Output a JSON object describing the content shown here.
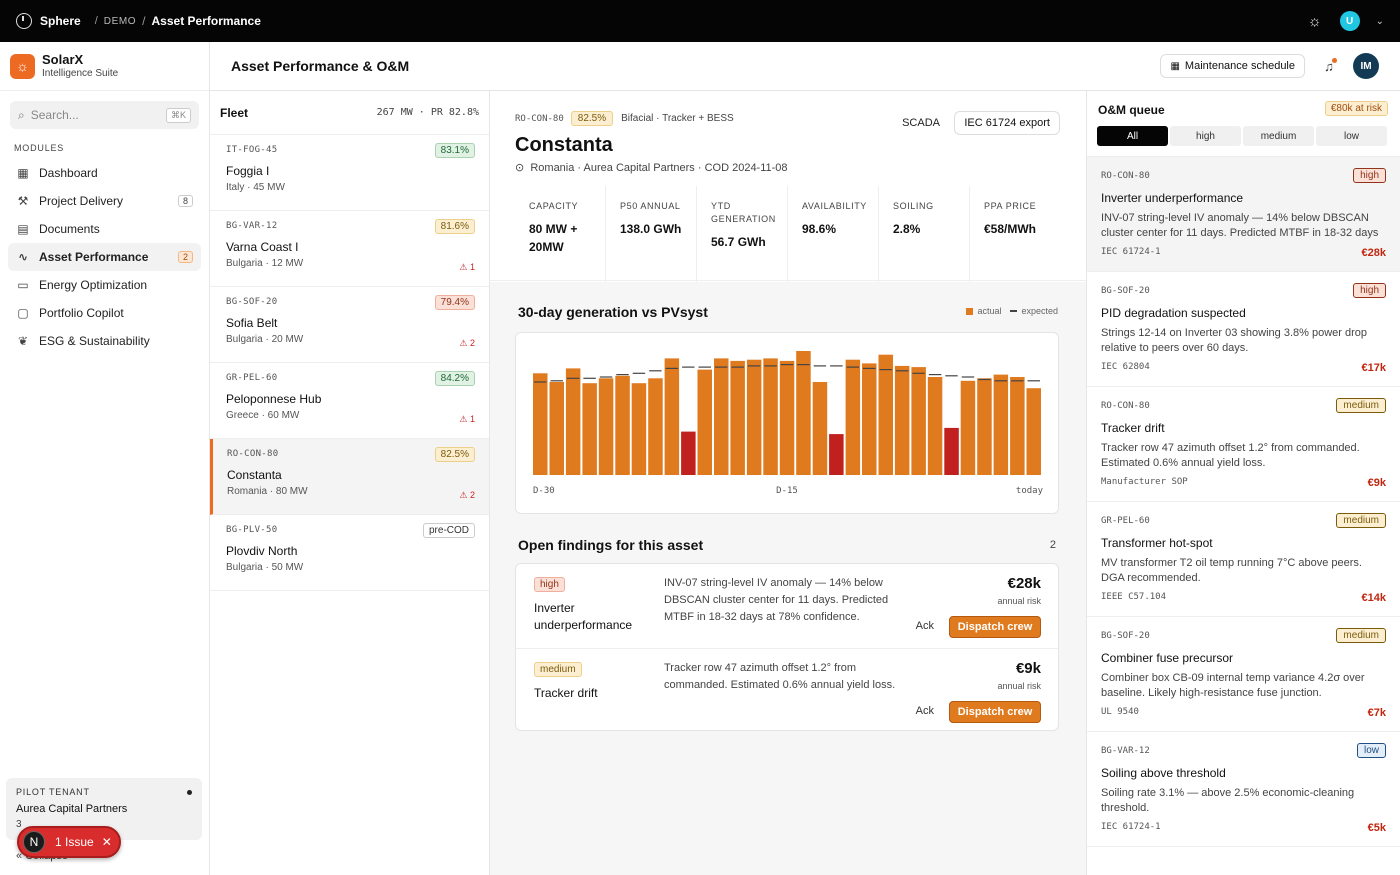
{
  "topbar": {
    "brand": "Sphere",
    "crumb_demo": "DEMO",
    "crumb_current": "Asset Performance",
    "avatar_initial": "U"
  },
  "sidebar": {
    "app_name": "SolarX",
    "app_sub": "Intelligence Suite",
    "search_placeholder": "Search...",
    "search_shortcut": "⌘K",
    "section_label": "MODULES",
    "items": [
      {
        "label": "Dashboard",
        "icon": "grid-icon",
        "badge": ""
      },
      {
        "label": "Project Delivery",
        "icon": "hammer-icon",
        "badge": "8"
      },
      {
        "label": "Documents",
        "icon": "document-icon",
        "badge": ""
      },
      {
        "label": "Asset Performance",
        "icon": "pulse-icon",
        "badge": "2"
      },
      {
        "label": "Energy Optimization",
        "icon": "battery-icon",
        "badge": ""
      },
      {
        "label": "Portfolio Copilot",
        "icon": "chat-icon",
        "badge": ""
      },
      {
        "label": "ESG & Sustainability",
        "icon": "leaf-icon",
        "badge": ""
      }
    ],
    "tenant_label": "PILOT TENANT",
    "tenant_name": "Aurea Capital Partners",
    "tenant_meta": "3",
    "collapse_label": "Collapse",
    "issue_label": "1 Issue",
    "issue_initial": "N"
  },
  "page": {
    "title": "Asset Performance & O&M",
    "maintenance_label": "Maintenance schedule",
    "user_initials": "IM"
  },
  "fleet": {
    "title": "Fleet",
    "summary": "267 MW · PR 82.8%",
    "items": [
      {
        "code": "IT-FOG-45",
        "name": "Foggia I",
        "location": "Italy · 45 MW",
        "pr": "83.1%",
        "tone": "green",
        "alerts": ""
      },
      {
        "code": "BG-VAR-12",
        "name": "Varna Coast I",
        "location": "Bulgaria · 12 MW",
        "pr": "81.6%",
        "tone": "yellow",
        "alerts": "1"
      },
      {
        "code": "BG-SOF-20",
        "name": "Sofia Belt",
        "location": "Bulgaria · 20 MW",
        "pr": "79.4%",
        "tone": "red",
        "alerts": "2"
      },
      {
        "code": "GR-PEL-60",
        "name": "Peloponnese Hub",
        "location": "Greece · 60 MW",
        "pr": "84.2%",
        "tone": "green",
        "alerts": "1"
      },
      {
        "code": "RO-CON-80",
        "name": "Constanta",
        "location": "Romania · 80 MW",
        "pr": "82.5%",
        "tone": "yellow",
        "alerts": "2"
      },
      {
        "code": "BG-PLV-50",
        "name": "Plovdiv North",
        "location": "Bulgaria · 50 MW",
        "pr": "pre-COD",
        "tone": "grey",
        "alerts": ""
      }
    ]
  },
  "asset": {
    "code": "RO-CON-80",
    "pr": "82.5%",
    "tags": "Bifacial · Tracker + BESS",
    "scada": "SCADA",
    "export_label": "IEC 61724 export",
    "name": "Constanta",
    "meta": "Romania · Aurea Capital Partners · COD 2024-11-08",
    "kpis": [
      {
        "label": "CAPACITY",
        "value": "80 MW + 20MW"
      },
      {
        "label": "P50 ANNUAL",
        "value": "138.0 GWh"
      },
      {
        "label": "YTD GENERATION",
        "value": "56.7 GWh"
      },
      {
        "label": "AVAILABILITY",
        "value": "98.6%"
      },
      {
        "label": "SOILING",
        "value": "2.8%"
      },
      {
        "label": "PPA PRICE",
        "value": "€58/MWh"
      }
    ]
  },
  "chart": {
    "title": "30-day generation vs PVsyst",
    "legend_actual": "actual",
    "legend_expected": "expected"
  },
  "chart_data": {
    "type": "bar",
    "title": "30-day generation vs PVsyst",
    "x_tick_labels": [
      "D-30",
      "D-15",
      "today"
    ],
    "ylim": [
      0,
      100
    ],
    "grid": false,
    "legend": "top-right",
    "series": [
      {
        "name": "actual",
        "values": [
          82,
          75,
          86,
          74,
          78,
          80,
          74,
          78,
          94,
          35,
          85,
          94,
          92,
          93,
          94,
          92,
          100,
          75,
          33,
          93,
          90,
          97,
          88,
          87,
          79,
          38,
          76,
          78,
          81,
          79,
          70
        ],
        "below_expected_days": [
          9,
          18,
          25
        ]
      },
      {
        "name": "expected",
        "values": [
          75,
          76,
          78,
          78,
          79,
          81,
          82,
          84,
          86,
          87,
          87,
          87,
          87,
          88,
          88,
          89,
          89,
          88,
          88,
          87,
          86,
          85,
          84,
          82,
          81,
          80,
          79,
          77,
          76,
          76,
          76
        ]
      }
    ],
    "colors": {
      "actual": "#e07a1f",
      "underperform": "#c0201e",
      "expected": "#444444"
    }
  },
  "findings": {
    "title": "Open findings for this asset",
    "count": "2",
    "items": [
      {
        "severity": "high",
        "title": "Inverter underperformance",
        "desc": "INV-07 string-level IV anomaly — 14% below DBSCAN cluster center for 11 days. Predicted MTBF in 18-32 days at 78% confidence.",
        "amount": "€28k",
        "amount_sub": "annual risk",
        "ack": "Ack",
        "dispatch": "Dispatch crew"
      },
      {
        "severity": "medium",
        "title": "Tracker drift",
        "desc": "Tracker row 47 azimuth offset 1.2° from commanded. Estimated 0.6% annual yield loss.",
        "amount": "€9k",
        "amount_sub": "annual risk",
        "ack": "Ack",
        "dispatch": "Dispatch crew"
      }
    ]
  },
  "queue": {
    "title": "O&M queue",
    "risk": "€80k at risk",
    "tabs": [
      "All",
      "high",
      "medium",
      "low"
    ],
    "items": [
      {
        "code": "RO-CON-80",
        "severity": "high",
        "title": "Inverter underperformance",
        "desc": "INV-07 string-level IV anomaly — 14% below DBSCAN cluster center for 11 days. Predicted MTBF in 18-32 days a...",
        "std": "IEC 61724-1",
        "amount": "€28k"
      },
      {
        "code": "BG-SOF-20",
        "severity": "high",
        "title": "PID degradation suspected",
        "desc": "Strings 12-14 on Inverter 03 showing 3.8% power drop relative to peers over 60 days.",
        "std": "IEC 62804",
        "amount": "€17k"
      },
      {
        "code": "RO-CON-80",
        "severity": "medium",
        "title": "Tracker drift",
        "desc": "Tracker row 47 azimuth offset 1.2° from commanded. Estimated 0.6% annual yield loss.",
        "std": "Manufacturer SOP",
        "amount": "€9k"
      },
      {
        "code": "GR-PEL-60",
        "severity": "medium",
        "title": "Transformer hot-spot",
        "desc": "MV transformer T2 oil temp running 7°C above peers. DGA recommended.",
        "std": "IEEE C57.104",
        "amount": "€14k"
      },
      {
        "code": "BG-SOF-20",
        "severity": "medium",
        "title": "Combiner fuse precursor",
        "desc": "Combiner box CB-09 internal temp variance 4.2σ over baseline. Likely high-resistance fuse junction.",
        "std": "UL 9540",
        "amount": "€7k"
      },
      {
        "code": "BG-VAR-12",
        "severity": "low",
        "title": "Soiling above threshold",
        "desc": "Soiling rate 3.1% — above 2.5% economic-cleaning threshold.",
        "std": "IEC 61724-1",
        "amount": "€5k"
      }
    ]
  }
}
